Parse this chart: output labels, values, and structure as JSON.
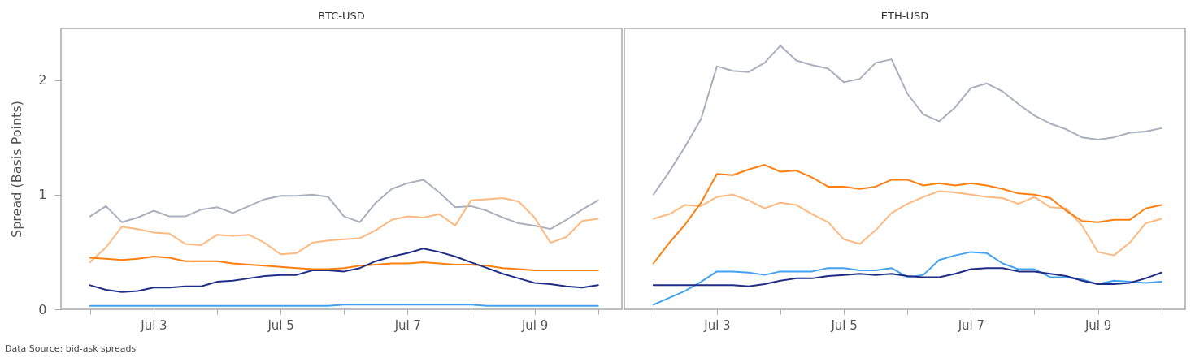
{
  "chart_data": [
    {
      "type": "line",
      "title": "BTC-USD",
      "ylabel": "Spread (Basis Points)",
      "tick_labels": true,
      "x": [
        "--07-02T00:00",
        "--07-02T06:00",
        "--07-02T12:00",
        "--07-02T18:00",
        "--07-03T00:00",
        "--07-03T06:00",
        "--07-03T12:00",
        "--07-03T18:00",
        "--07-04T00:00",
        "--07-04T06:00",
        "--07-04T12:00",
        "--07-04T18:00",
        "--07-05T00:00",
        "--07-05T06:00",
        "--07-05T12:00",
        "--07-05T18:00",
        "--07-06T00:00",
        "--07-06T06:00",
        "--07-06T12:00",
        "--07-06T18:00",
        "--07-07T00:00",
        "--07-07T06:00",
        "--07-07T12:00",
        "--07-07T18:00",
        "--07-08T00:00",
        "--07-08T06:00",
        "--07-08T12:00",
        "--07-08T18:00",
        "--07-09T00:00",
        "--07-09T06:00",
        "--07-09T12:00",
        "--07-09T18:00",
        "--07-10T00:00"
      ],
      "xlim": [
        "--07-01T13:00",
        "--07-10T09:00"
      ],
      "xticks": [
        {
          "value": "--07-02",
          "label": null
        },
        {
          "value": "--07-03",
          "label": "Jul 3"
        },
        {
          "value": "--07-04",
          "label": null
        },
        {
          "value": "--07-05",
          "label": "Jul 5"
        },
        {
          "value": "--07-06",
          "label": null
        },
        {
          "value": "--07-07",
          "label": "Jul 7"
        },
        {
          "value": "--07-08",
          "label": null
        },
        {
          "value": "--07-09",
          "label": "Jul 9"
        },
        {
          "value": "--07-10",
          "label": null
        }
      ],
      "ylim": [
        0,
        2.45
      ],
      "yticks": [
        0,
        1,
        2
      ],
      "series": [
        {
          "color": "#a8afbd",
          "values": [
            0.81,
            0.9,
            0.76,
            0.8,
            0.86,
            0.81,
            0.81,
            0.87,
            0.89,
            0.84,
            0.9,
            0.96,
            0.99,
            0.99,
            1.0,
            0.98,
            0.81,
            0.76,
            0.93,
            1.05,
            1.1,
            1.13,
            1.02,
            0.89,
            0.9,
            0.86,
            0.8,
            0.75,
            0.73,
            0.7,
            0.78,
            0.87,
            0.95
          ]
        },
        {
          "color": "#ffb97f",
          "values": [
            0.41,
            0.54,
            0.72,
            0.7,
            0.67,
            0.66,
            0.57,
            0.56,
            0.65,
            0.64,
            0.65,
            0.58,
            0.48,
            0.49,
            0.58,
            0.6,
            0.61,
            0.62,
            0.69,
            0.78,
            0.81,
            0.8,
            0.83,
            0.73,
            0.95,
            0.96,
            0.97,
            0.94,
            0.8,
            0.58,
            0.63,
            0.77,
            0.79
          ]
        },
        {
          "color": "#ff7f0e",
          "values": [
            0.45,
            0.44,
            0.43,
            0.44,
            0.46,
            0.45,
            0.42,
            0.42,
            0.42,
            0.4,
            0.39,
            0.38,
            0.37,
            0.36,
            0.35,
            0.35,
            0.36,
            0.38,
            0.39,
            0.4,
            0.4,
            0.41,
            0.4,
            0.39,
            0.39,
            0.38,
            0.36,
            0.35,
            0.34,
            0.34,
            0.34,
            0.34,
            0.34
          ]
        },
        {
          "color": "#1f2d86",
          "values": [
            0.21,
            0.17,
            0.15,
            0.16,
            0.19,
            0.19,
            0.2,
            0.2,
            0.24,
            0.25,
            0.27,
            0.29,
            0.3,
            0.3,
            0.34,
            0.34,
            0.33,
            0.36,
            0.42,
            0.46,
            0.49,
            0.53,
            0.5,
            0.46,
            0.41,
            0.36,
            0.31,
            0.27,
            0.23,
            0.22,
            0.2,
            0.19,
            0.21
          ]
        },
        {
          "color": "#42a1f0",
          "values": [
            0.03,
            0.03,
            0.03,
            0.03,
            0.03,
            0.03,
            0.03,
            0.03,
            0.03,
            0.03,
            0.03,
            0.03,
            0.03,
            0.03,
            0.03,
            0.03,
            0.04,
            0.04,
            0.04,
            0.04,
            0.04,
            0.04,
            0.04,
            0.04,
            0.04,
            0.03,
            0.03,
            0.03,
            0.03,
            0.03,
            0.03,
            0.03,
            0.03
          ]
        }
      ],
      "annotations": [
        "Data Source: bid-ask spreads"
      ]
    },
    {
      "type": "line",
      "title": "ETH-USD",
      "tick_labels": "x",
      "x": [
        "--07-02T00:00",
        "--07-02T06:00",
        "--07-02T12:00",
        "--07-02T18:00",
        "--07-03T00:00",
        "--07-03T06:00",
        "--07-03T12:00",
        "--07-03T18:00",
        "--07-04T00:00",
        "--07-04T06:00",
        "--07-04T12:00",
        "--07-04T18:00",
        "--07-05T00:00",
        "--07-05T06:00",
        "--07-05T12:00",
        "--07-05T18:00",
        "--07-06T00:00",
        "--07-06T06:00",
        "--07-06T12:00",
        "--07-06T18:00",
        "--07-07T00:00",
        "--07-07T06:00",
        "--07-07T12:00",
        "--07-07T18:00",
        "--07-08T00:00",
        "--07-08T06:00",
        "--07-08T12:00",
        "--07-08T18:00",
        "--07-09T00:00",
        "--07-09T06:00",
        "--07-09T12:00",
        "--07-09T18:00",
        "--07-10T00:00"
      ],
      "xlim": [
        "--07-01T13:00",
        "--07-10T09:00"
      ],
      "xticks": [
        {
          "value": "--07-02",
          "label": null
        },
        {
          "value": "--07-03",
          "label": "Jul 3"
        },
        {
          "value": "--07-04",
          "label": null
        },
        {
          "value": "--07-05",
          "label": "Jul 5"
        },
        {
          "value": "--07-06",
          "label": null
        },
        {
          "value": "--07-07",
          "label": "Jul 7"
        },
        {
          "value": "--07-08",
          "label": null
        },
        {
          "value": "--07-09",
          "label": "Jul 9"
        },
        {
          "value": "--07-10",
          "label": null
        }
      ],
      "ylim": [
        0,
        2.45
      ],
      "yticks": [
        0,
        1,
        2
      ],
      "series": [
        {
          "color": "#a8afbd",
          "values": [
            1.0,
            1.2,
            1.42,
            1.66,
            2.12,
            2.08,
            2.07,
            2.15,
            2.3,
            2.17,
            2.13,
            2.1,
            1.98,
            2.01,
            2.15,
            2.18,
            1.88,
            1.7,
            1.64,
            1.76,
            1.93,
            1.97,
            1.9,
            1.79,
            1.69,
            1.62,
            1.57,
            1.5,
            1.48,
            1.5,
            1.54,
            1.55,
            1.58
          ]
        },
        {
          "color": "#ffb97f",
          "values": [
            0.79,
            0.83,
            0.91,
            0.9,
            0.98,
            1.0,
            0.95,
            0.88,
            0.93,
            0.91,
            0.83,
            0.76,
            0.61,
            0.57,
            0.69,
            0.84,
            0.92,
            0.98,
            1.03,
            1.02,
            1.0,
            0.98,
            0.97,
            0.92,
            0.98,
            0.89,
            0.88,
            0.73,
            0.5,
            0.47,
            0.58,
            0.75,
            0.79
          ]
        },
        {
          "color": "#ff7f0e",
          "values": [
            0.4,
            0.58,
            0.74,
            0.93,
            1.18,
            1.17,
            1.22,
            1.26,
            1.2,
            1.21,
            1.15,
            1.07,
            1.07,
            1.05,
            1.07,
            1.13,
            1.13,
            1.08,
            1.1,
            1.08,
            1.1,
            1.08,
            1.05,
            1.01,
            1.0,
            0.97,
            0.86,
            0.77,
            0.76,
            0.78,
            0.78,
            0.88,
            0.91
          ]
        },
        {
          "color": "#42a1f0",
          "values": [
            0.04,
            0.1,
            0.16,
            0.24,
            0.33,
            0.33,
            0.32,
            0.3,
            0.33,
            0.33,
            0.33,
            0.36,
            0.36,
            0.34,
            0.34,
            0.36,
            0.28,
            0.3,
            0.43,
            0.47,
            0.5,
            0.49,
            0.4,
            0.35,
            0.35,
            0.28,
            0.28,
            0.26,
            0.22,
            0.25,
            0.24,
            0.23,
            0.24
          ]
        },
        {
          "color": "#1f2d86",
          "values": [
            0.21,
            0.21,
            0.21,
            0.21,
            0.21,
            0.21,
            0.2,
            0.22,
            0.25,
            0.27,
            0.27,
            0.29,
            0.3,
            0.31,
            0.3,
            0.31,
            0.29,
            0.28,
            0.28,
            0.31,
            0.35,
            0.36,
            0.36,
            0.33,
            0.33,
            0.31,
            0.29,
            0.25,
            0.22,
            0.22,
            0.23,
            0.27,
            0.32
          ]
        }
      ]
    }
  ]
}
